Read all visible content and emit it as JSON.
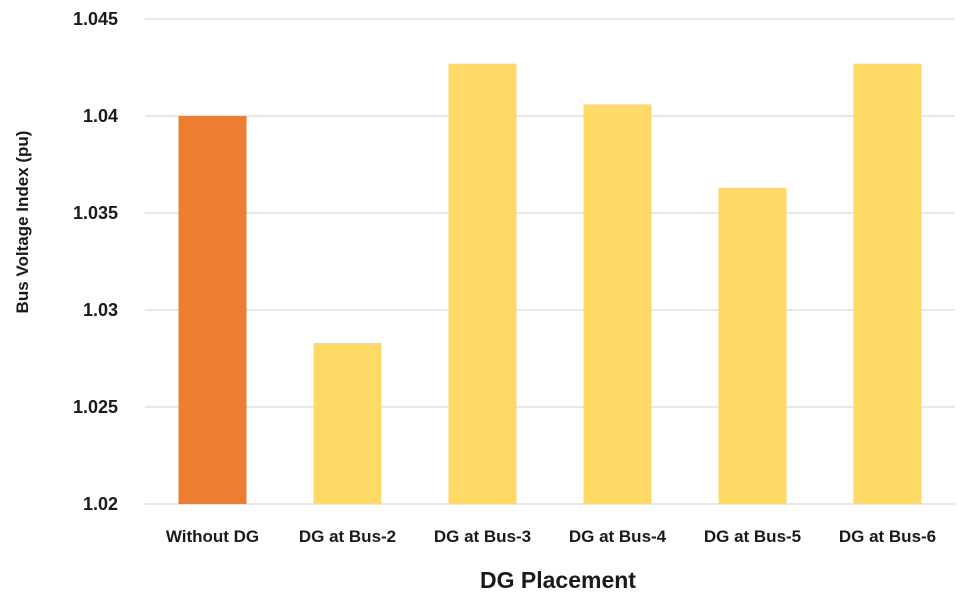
{
  "chart_data": {
    "type": "bar",
    "title": "",
    "xlabel": "DG Placement",
    "ylabel": "Bus Voltage Index (pu)",
    "categories": [
      "Without DG",
      "DG at Bus-2",
      "DG at Bus-3",
      "DG at Bus-4",
      "DG at Bus-5",
      "DG at Bus-6"
    ],
    "values": [
      1.04,
      1.0283,
      1.0427,
      1.0406,
      1.0363,
      1.0427
    ],
    "colors": [
      "#ED7D31",
      "#FFD966",
      "#FFD966",
      "#FFD966",
      "#FFD966",
      "#FFD966"
    ],
    "ylim": [
      1.02,
      1.045
    ],
    "yticks": [
      1.02,
      1.025,
      1.03,
      1.035,
      1.04,
      1.045
    ],
    "ytick_labels": [
      "1.02",
      "1.025",
      "1.03",
      "1.035",
      "1.04",
      "1.045"
    ],
    "grid": true,
    "legend": "none"
  }
}
